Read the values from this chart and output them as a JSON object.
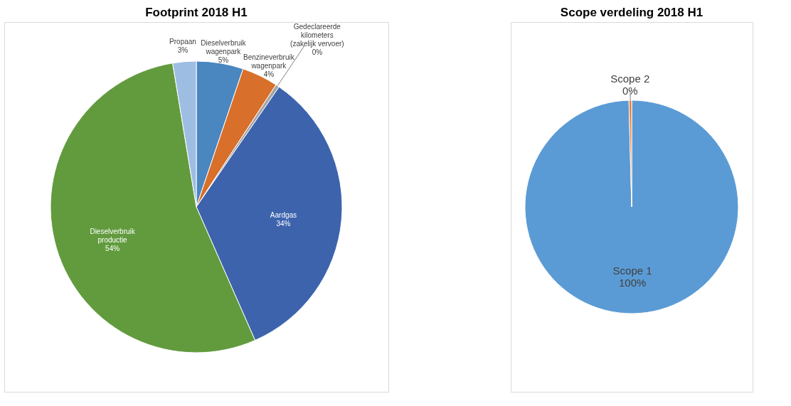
{
  "chart_data": [
    {
      "type": "pie",
      "title": "Footprint 2018 H1",
      "categories": [
        "Dieselverbruik wagenpark",
        "Benzineverbruik wagenpark",
        "Gedeclareerde kilometers (zakelijk vervoer)",
        "Aardgas",
        "Dieselverbruik productie",
        "Propaan"
      ],
      "values": [
        5.2,
        4.0,
        0.4,
        33.8,
        54.0,
        2.6
      ],
      "colors": [
        "#4a86c0",
        "#d86f2a",
        "#a5a5a5",
        "#3d63ad",
        "#629b3e",
        "#9dbde3"
      ],
      "value_labels": [
        "5%",
        "4%",
        "0%",
        "34%",
        "54%",
        "3%"
      ]
    },
    {
      "type": "pie",
      "title": "Scope verdeling 2018 H1",
      "categories": [
        "Scope 1",
        "Scope 2"
      ],
      "values": [
        99.6,
        0.4
      ],
      "colors": [
        "#5b9bd5",
        "#ed7d31"
      ],
      "value_labels": [
        "100%",
        "0%"
      ]
    }
  ]
}
